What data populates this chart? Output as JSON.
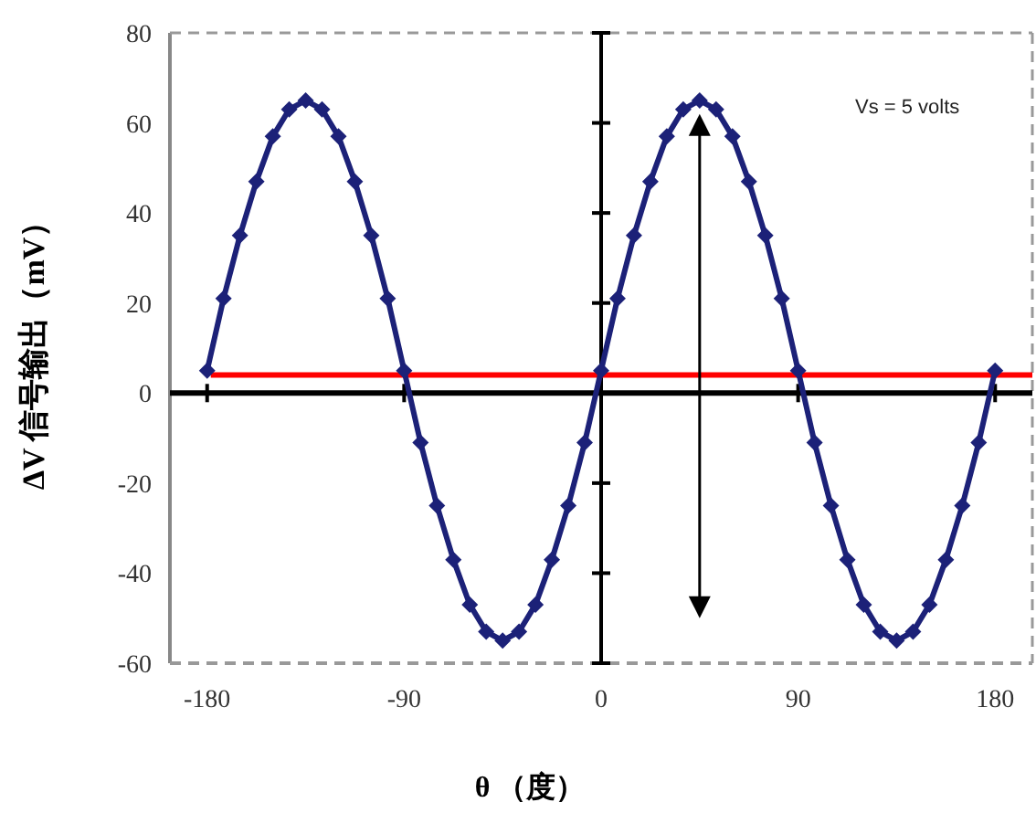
{
  "chart_data": {
    "type": "line",
    "xlabel": "θ （度）",
    "ylabel": "ΔV 信号输出（mV）",
    "annotations": [
      "Vs = 5 volts"
    ],
    "x": [
      -180,
      -172.5,
      -165,
      -157.5,
      -150,
      -142.5,
      -135,
      -127.5,
      -120,
      -112.5,
      -105,
      -97.5,
      -90,
      -82.5,
      -75,
      -67.5,
      -60,
      -52.5,
      -45,
      -37.5,
      -30,
      -22.5,
      -15,
      -7.5,
      0,
      7.5,
      15,
      22.5,
      30,
      37.5,
      45,
      52.5,
      60,
      67.5,
      75,
      82.5,
      90,
      97.5,
      105,
      112.5,
      120,
      127.5,
      135,
      142.5,
      150,
      157.5,
      165,
      172.5,
      180
    ],
    "series": [
      {
        "color": "#1c2178",
        "values": [
          5,
          21,
          35,
          47,
          57,
          63,
          65,
          63,
          57,
          47,
          35,
          21,
          5,
          -11,
          -25,
          -37,
          -47,
          -53,
          -55,
          -53,
          -47,
          -37,
          -25,
          -11,
          5,
          21,
          35,
          47,
          57,
          63,
          65,
          63,
          57,
          47,
          35,
          21,
          5,
          -11,
          -25,
          -37,
          -47,
          -53,
          -55,
          -53,
          -47,
          -37,
          -25,
          -11,
          5
        ]
      }
    ],
    "xlim": [
      -197,
      197
    ],
    "ylim": [
      -60,
      80
    ],
    "xticks": [
      -180,
      -90,
      0,
      90,
      180
    ],
    "yticks": [
      -60,
      -40,
      -20,
      0,
      20,
      40,
      60,
      80
    ],
    "ref_lines": [
      {
        "axis": "y",
        "value": 4,
        "color": "#ff0000"
      }
    ],
    "marker": "diamond",
    "line_style": "solid",
    "grid": false
  }
}
